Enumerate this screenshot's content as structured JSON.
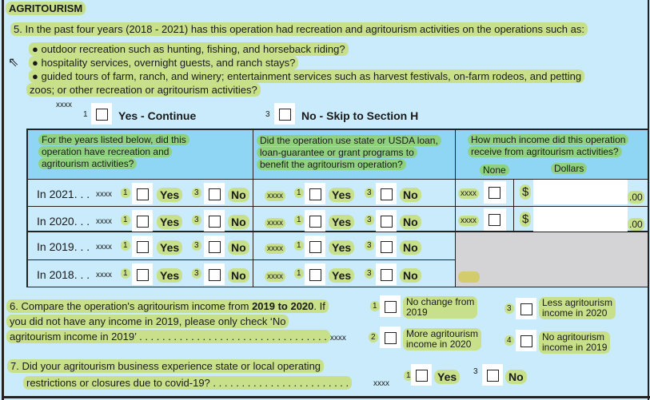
{
  "section_title": "AGRITOURISM",
  "q5": {
    "text": "5. In the past four years (2018 - 2021) has this operation had recreation and agritourism activities on the operations such as:",
    "bullets": [
      "● outdoor recreation such as hunting, fishing, and horseback riding?",
      "● hospitality services, overnight guests, and ranch stays?",
      "● guided tours of farm, ranch, and winery; entertainment services such as harvest festivals, on-farm rodeos, and petting"
    ],
    "bullet_cont": "zoos; or other recreation or agritourism activities?",
    "code": "xxxx",
    "yes_code": "1",
    "yes_label": "Yes - Continue",
    "no_code": "3",
    "no_label": "No - Skip to Section H"
  },
  "table": {
    "col1_header": [
      "For the years listed below, did this",
      "operation have recreation and",
      "agritourism activities?"
    ],
    "col2_header": [
      "Did the operation use state or USDA loan,",
      "loan-guarantee or grant programs to",
      "benefit the agritourism operation?"
    ],
    "col3_header": [
      "How much income did this operation",
      "receive from agritourism activities?"
    ],
    "none_label": "None",
    "dollars_label": "Dollars",
    "yes": "Yes",
    "no": "No",
    "yes_code": "1",
    "no_code": "3",
    "code": "xxxx",
    "dollar": "$",
    "cents": ".00",
    "rows": [
      {
        "year": "In 2021. . ."
      },
      {
        "year": "In 2020. . ."
      },
      {
        "year": "In 2019. . ."
      },
      {
        "year": "In 2018. . ."
      }
    ]
  },
  "q6": {
    "line1a": "6.  Compare the operation's agritourism income from ",
    "line1b": "2019 to 2020",
    ". If": "",
    "line1c": ". If",
    "line2": "you did not have any income in 2019, please only check ‘No",
    "line3": "agritourism income in 2019’ . . . . . . . . . . . . . . . . . . . . . . . . . . . . . . . . .",
    "code": "xxxx",
    "options": [
      {
        "code": "1",
        "label": [
          "No change from",
          "2019"
        ]
      },
      {
        "code": "2",
        "label": [
          "More agritourism",
          "income in 2020"
        ]
      },
      {
        "code": "3",
        "label": [
          "Less agritourism",
          "income in 2020"
        ]
      },
      {
        "code": "4",
        "label": [
          "No agritourism",
          "income in 2019"
        ]
      }
    ]
  },
  "q7": {
    "line1": "7. Did your agritourism business experience state or local operating",
    "line2": "restrictions or closures due to covid-19? . . . . . . . . . . . . . . . . . . . . . . . .",
    "code": "xxxx",
    "yes_code": "1",
    "yes": "Yes",
    "no_code": "3",
    "no": "No"
  }
}
